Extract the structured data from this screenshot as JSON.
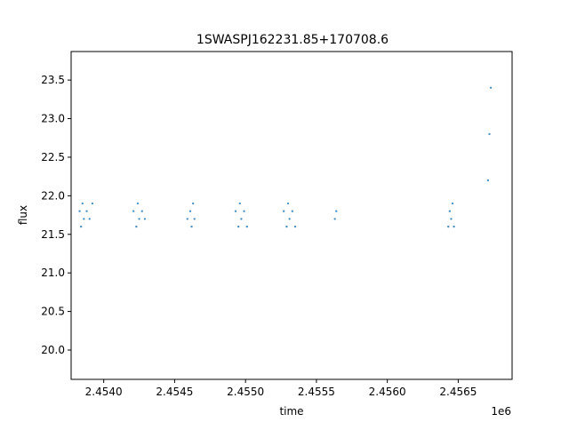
{
  "chart_data": {
    "type": "scatter",
    "title": "1SWASPJ162231.85+170708.6",
    "xlabel": "time",
    "ylabel": "flux",
    "x_offset_label": "1e6",
    "x_scale_factor": 1000000,
    "xlim": [
      2.45377,
      2.45688
    ],
    "ylim": [
      19.62,
      23.87
    ],
    "x_ticks": [
      2.454,
      2.4545,
      2.455,
      2.4555,
      2.456,
      2.4565
    ],
    "x_tick_labels": [
      "2.4540",
      "2.4545",
      "2.4550",
      "2.4555",
      "2.4560",
      "2.4565"
    ],
    "y_ticks": [
      20.0,
      20.5,
      21.0,
      21.5,
      22.0,
      22.5,
      23.0,
      23.5
    ],
    "y_tick_labels": [
      "20.0",
      "20.5",
      "21.0",
      "21.5",
      "22.0",
      "22.5",
      "23.0",
      "23.5"
    ],
    "grid": false,
    "legend": "none",
    "marker_color": "#1f77b4",
    "series": [
      {
        "x": [
          2.45383,
          2.45384,
          2.45385,
          2.45386,
          2.45388,
          2.4539,
          2.45392,
          2.45421,
          2.45423,
          2.45424,
          2.45425,
          2.45427,
          2.45429,
          2.45459,
          2.45461,
          2.45462,
          2.45463,
          2.45464,
          2.45493,
          2.45495,
          2.45496,
          2.45497,
          2.45499,
          2.45501,
          2.45527,
          2.45529,
          2.4553,
          2.45531,
          2.45533,
          2.45535,
          2.45563,
          2.45564,
          2.45643,
          2.45644,
          2.45645,
          2.45646,
          2.45647,
          2.45671,
          2.45672,
          2.45673
        ],
        "y": [
          21.8,
          21.6,
          21.9,
          21.7,
          21.8,
          21.7,
          21.9,
          21.8,
          21.6,
          21.9,
          21.7,
          21.8,
          21.7,
          21.7,
          21.8,
          21.6,
          21.9,
          21.7,
          21.8,
          21.6,
          21.9,
          21.7,
          21.8,
          21.6,
          21.8,
          21.6,
          21.9,
          21.7,
          21.8,
          21.6,
          21.7,
          21.8,
          21.6,
          21.8,
          21.7,
          21.9,
          21.6,
          22.2,
          22.8,
          23.4
        ]
      }
    ]
  }
}
